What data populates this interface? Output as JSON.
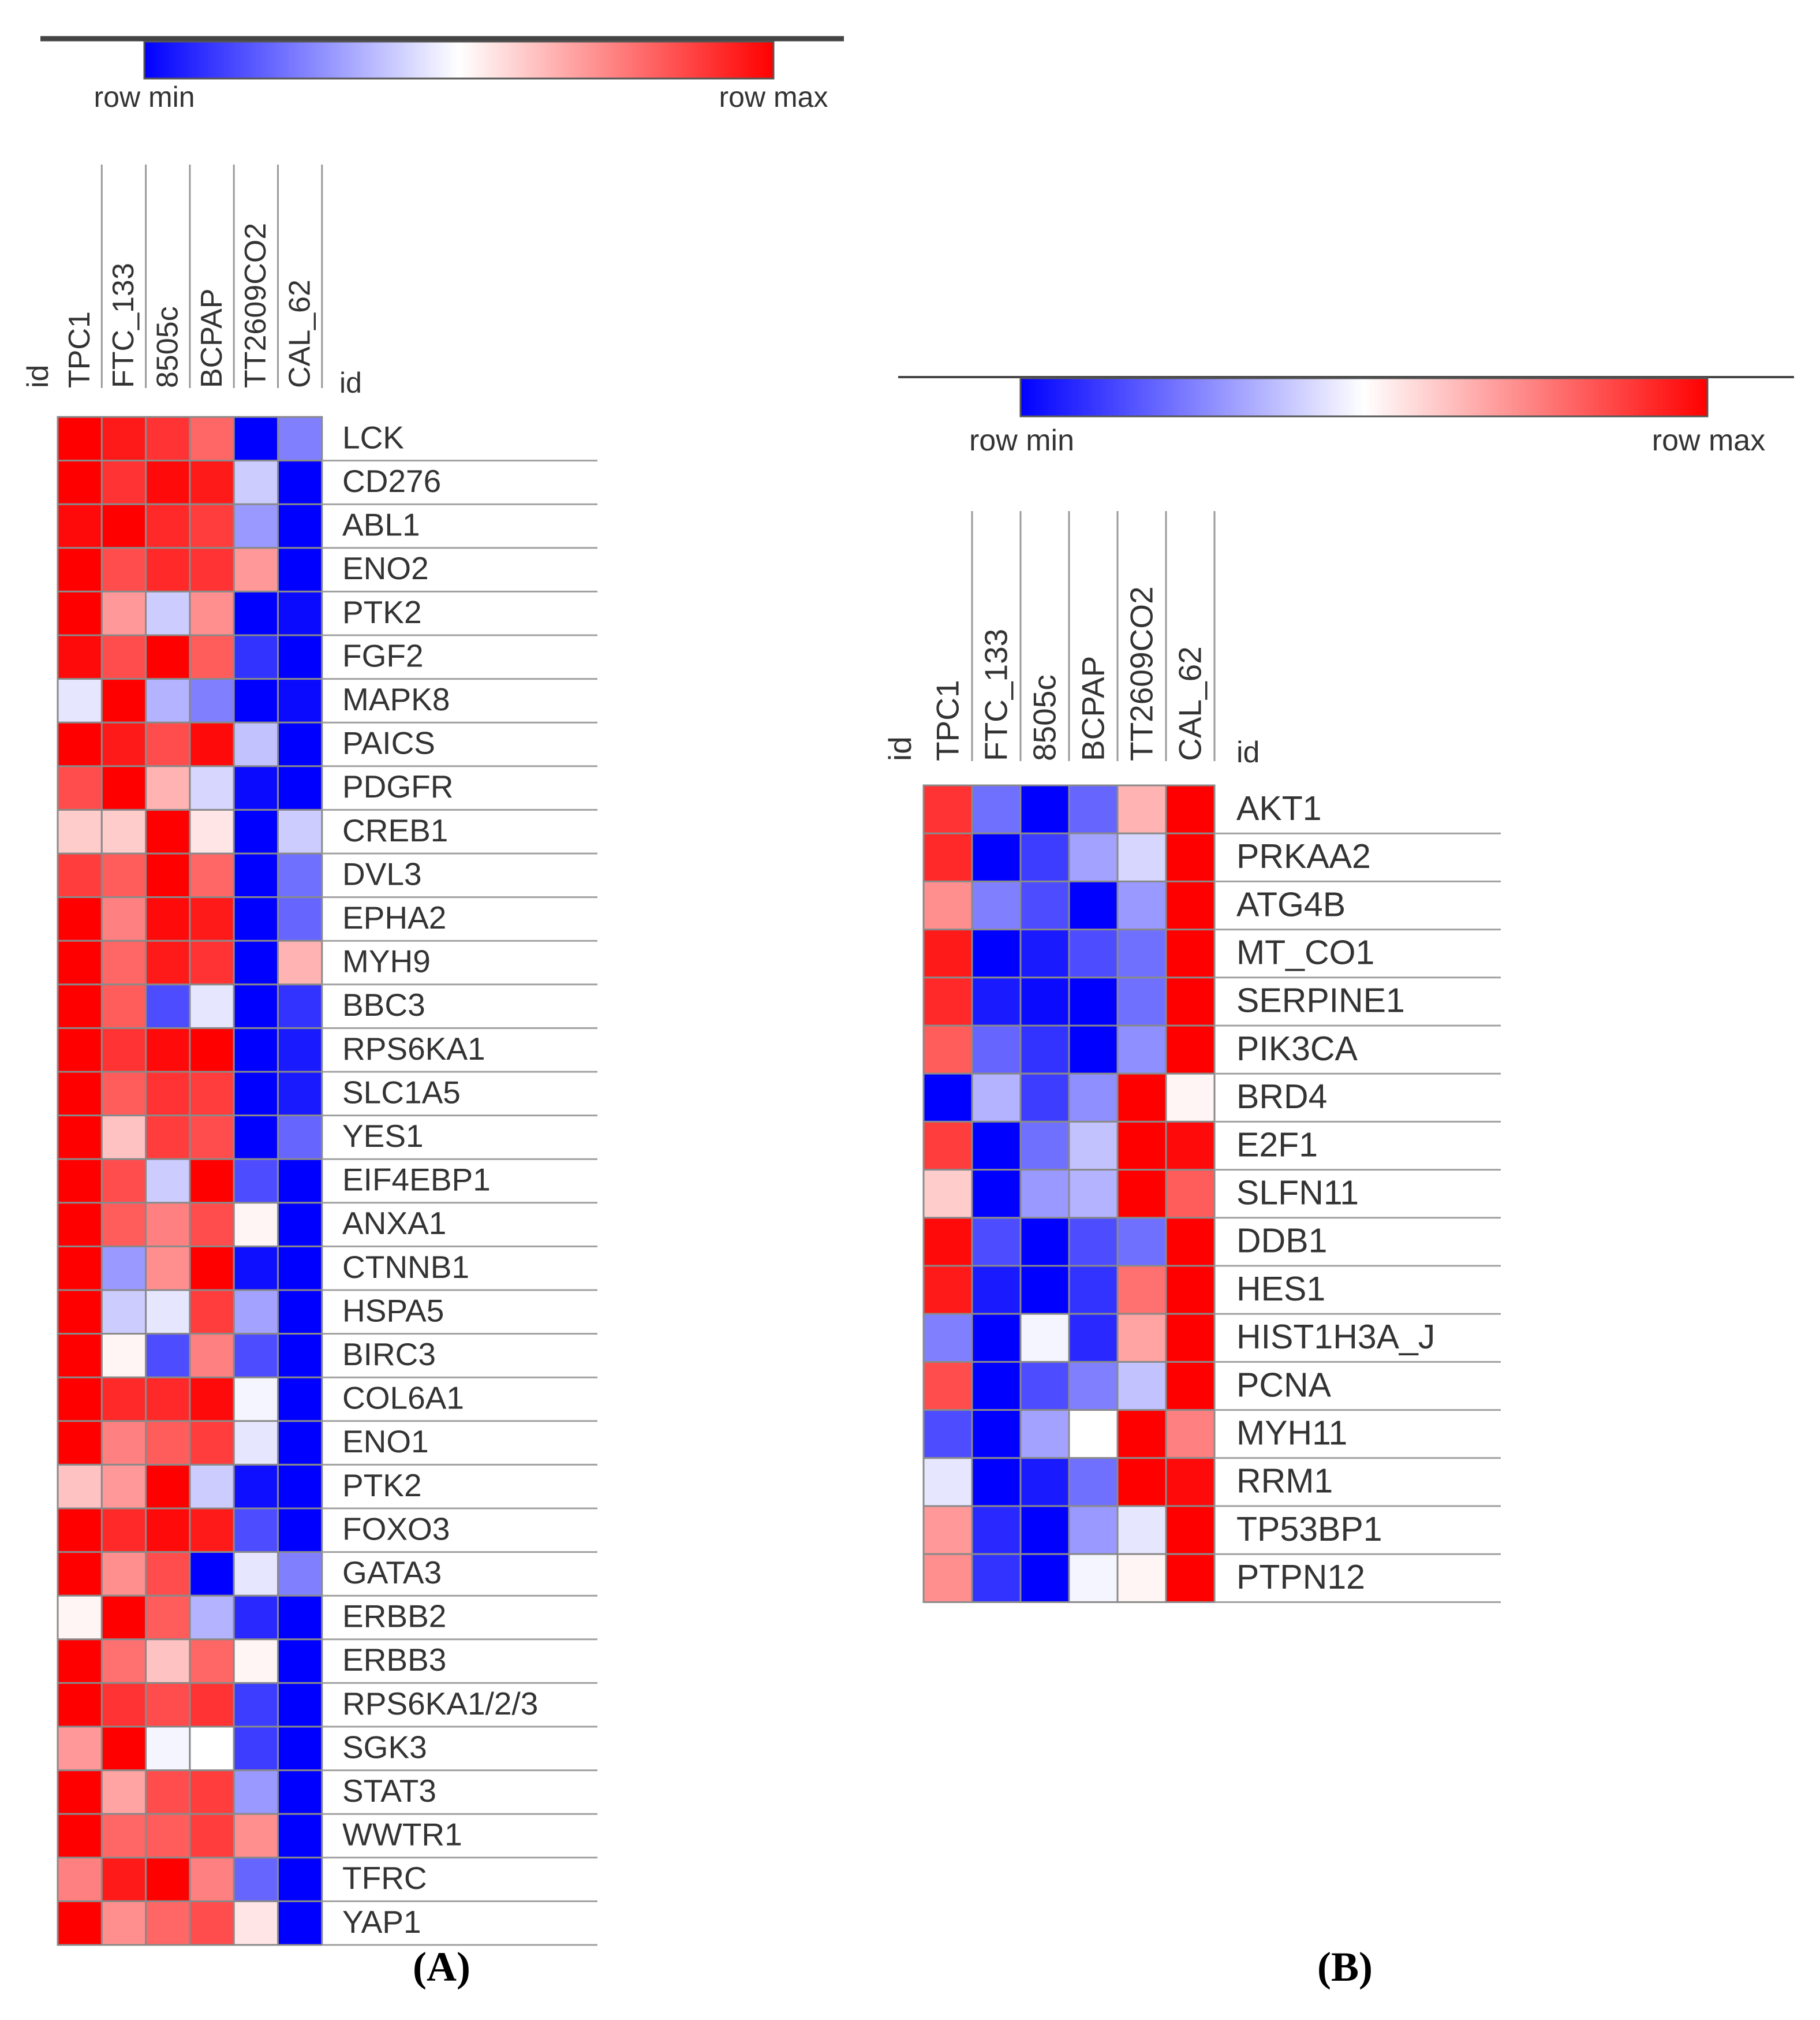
{
  "legend": {
    "min_label": "row min",
    "max_label": "row max",
    "min_color": "#0000ff",
    "mid_color": "#ffffff",
    "max_color": "#ff0000"
  },
  "chart_data": [
    {
      "type": "heatmap",
      "panel_label": "(A)",
      "id_label": "id",
      "clipped_column_label": "id",
      "value_scale": "row-normalized, 0 = row min (blue), 1 = row max (red)",
      "columns": [
        "TPC1",
        "FTC_133",
        "8505c",
        "BCPAP",
        "TT2609CO2",
        "CAL_62"
      ],
      "rows": [
        "LCK",
        "CD276",
        "ABL1",
        "ENO2",
        "PTK2",
        "FGF2",
        "MAPK8",
        "PAICS",
        "PDGFR",
        "CREB1",
        "DVL3",
        "EPHA2",
        "MYH9",
        "BBC3",
        "RPS6KA1",
        "SLC1A5",
        "YES1",
        "EIF4EBP1",
        "ANXA1",
        "CTNNB1",
        "HSPA5",
        "BIRC3",
        "COL6A1",
        "ENO1",
        "PTK2",
        "FOXO3",
        "GATA3",
        "ERBB2",
        "ERBB3",
        "RPS6KA1/2/3",
        "SGK3",
        "STAT3",
        "WWTR1",
        "TFRC",
        "YAP1"
      ],
      "values": [
        [
          1.0,
          0.95,
          0.9,
          0.8,
          0.0,
          0.25
        ],
        [
          1.0,
          0.9,
          0.98,
          0.95,
          0.4,
          0.0
        ],
        [
          0.98,
          1.0,
          0.92,
          0.88,
          0.3,
          0.0
        ],
        [
          1.0,
          0.85,
          0.92,
          0.9,
          0.7,
          0.0
        ],
        [
          1.0,
          0.7,
          0.4,
          0.72,
          0.0,
          0.02
        ],
        [
          0.98,
          0.85,
          1.0,
          0.82,
          0.1,
          0.0
        ],
        [
          0.45,
          1.0,
          0.35,
          0.25,
          0.0,
          0.02
        ],
        [
          1.0,
          0.95,
          0.85,
          0.98,
          0.38,
          0.0
        ],
        [
          0.85,
          1.0,
          0.65,
          0.42,
          0.02,
          0.0
        ],
        [
          0.6,
          0.6,
          1.0,
          0.55,
          0.0,
          0.4
        ],
        [
          0.88,
          0.82,
          1.0,
          0.8,
          0.0,
          0.22
        ],
        [
          1.0,
          0.75,
          0.98,
          0.95,
          0.0,
          0.2
        ],
        [
          1.0,
          0.8,
          0.95,
          0.9,
          0.0,
          0.65
        ],
        [
          1.0,
          0.82,
          0.15,
          0.45,
          0.0,
          0.1
        ],
        [
          1.0,
          0.9,
          0.98,
          1.0,
          0.0,
          0.05
        ],
        [
          1.0,
          0.82,
          0.9,
          0.88,
          0.0,
          0.05
        ],
        [
          1.0,
          0.62,
          0.88,
          0.85,
          0.0,
          0.2
        ],
        [
          1.0,
          0.85,
          0.4,
          1.0,
          0.15,
          0.0
        ],
        [
          1.0,
          0.82,
          0.75,
          0.85,
          0.52,
          0.0
        ],
        [
          1.0,
          0.3,
          0.72,
          1.0,
          0.03,
          0.0
        ],
        [
          1.0,
          0.4,
          0.45,
          0.88,
          0.32,
          0.0
        ],
        [
          1.0,
          0.52,
          0.15,
          0.75,
          0.15,
          0.0
        ],
        [
          1.0,
          0.92,
          0.92,
          0.98,
          0.48,
          0.0
        ],
        [
          1.0,
          0.75,
          0.82,
          0.88,
          0.45,
          0.0
        ],
        [
          0.62,
          0.7,
          1.0,
          0.4,
          0.03,
          0.0
        ],
        [
          1.0,
          0.92,
          0.98,
          0.95,
          0.15,
          0.0
        ],
        [
          1.0,
          0.72,
          0.85,
          0.0,
          0.45,
          0.25
        ],
        [
          0.52,
          1.0,
          0.82,
          0.35,
          0.08,
          0.0
        ],
        [
          1.0,
          0.78,
          0.62,
          0.8,
          0.52,
          0.0
        ],
        [
          1.0,
          0.9,
          0.85,
          0.9,
          0.12,
          0.0
        ],
        [
          0.7,
          1.0,
          0.48,
          0.5,
          0.12,
          0.0
        ],
        [
          1.0,
          0.68,
          0.85,
          0.88,
          0.3,
          0.0
        ],
        [
          1.0,
          0.8,
          0.82,
          0.88,
          0.72,
          0.0
        ],
        [
          0.75,
          0.95,
          1.0,
          0.75,
          0.2,
          0.0
        ],
        [
          1.0,
          0.72,
          0.8,
          0.85,
          0.55,
          0.0
        ]
      ]
    },
    {
      "type": "heatmap",
      "panel_label": "(B)",
      "id_label": "id",
      "clipped_column_label": "id",
      "value_scale": "row-normalized, 0 = row min (blue), 1 = row max (red)",
      "columns": [
        "TPC1",
        "FTC_133",
        "8505c",
        "BCPAP",
        "TT2609CO2",
        "CAL_62"
      ],
      "rows": [
        "AKT1",
        "PRKAA2",
        "ATG4B",
        "MT_CO1",
        "SERPINE1",
        "PIK3CA",
        "BRD4",
        "E2F1",
        "SLFN11",
        "DDB1",
        "HES1",
        "HIST1H3A_J",
        "PCNA",
        "MYH11",
        "RRM1",
        "TP53BP1",
        "PTPN12"
      ],
      "values": [
        [
          0.9,
          0.22,
          0.0,
          0.2,
          0.65,
          1.0
        ],
        [
          0.92,
          0.0,
          0.12,
          0.32,
          0.42,
          1.0
        ],
        [
          0.72,
          0.25,
          0.15,
          0.0,
          0.3,
          1.0
        ],
        [
          0.95,
          0.0,
          0.05,
          0.15,
          0.22,
          1.0
        ],
        [
          0.92,
          0.05,
          0.02,
          0.0,
          0.22,
          1.0
        ],
        [
          0.82,
          0.2,
          0.1,
          0.0,
          0.28,
          1.0
        ],
        [
          0.0,
          0.35,
          0.12,
          0.28,
          1.0,
          0.52
        ],
        [
          0.88,
          0.0,
          0.22,
          0.38,
          1.0,
          0.98
        ],
        [
          0.6,
          0.0,
          0.3,
          0.35,
          1.0,
          0.82
        ],
        [
          0.98,
          0.15,
          0.0,
          0.15,
          0.22,
          1.0
        ],
        [
          0.95,
          0.05,
          0.0,
          0.1,
          0.78,
          1.0
        ],
        [
          0.25,
          0.0,
          0.48,
          0.08,
          0.68,
          1.0
        ],
        [
          0.85,
          0.0,
          0.15,
          0.25,
          0.38,
          1.0
        ],
        [
          0.15,
          0.0,
          0.32,
          0.5,
          1.0,
          0.75
        ],
        [
          0.45,
          0.0,
          0.05,
          0.22,
          1.0,
          0.98
        ],
        [
          0.7,
          0.08,
          0.0,
          0.3,
          0.45,
          1.0
        ],
        [
          0.72,
          0.1,
          0.0,
          0.48,
          0.52,
          1.0
        ]
      ]
    }
  ]
}
